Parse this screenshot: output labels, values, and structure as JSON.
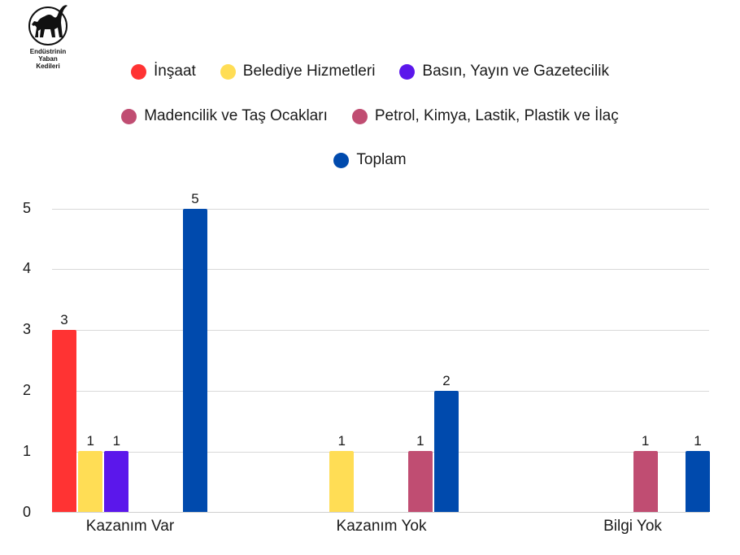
{
  "logo": {
    "icon": "black-cat-icon",
    "line1": "Endüstrinin",
    "line2": "Yaban",
    "line3": "Kedileri"
  },
  "legend": {
    "row1": [
      {
        "label": "İnşaat",
        "color": "#FF3333"
      },
      {
        "label": "Belediye Hizmetleri",
        "color": "#FFDD55"
      },
      {
        "label": "Basın, Yayın ve Gazetecilik",
        "color": "#5B17EB"
      }
    ],
    "row2": [
      {
        "label": "Madencilik ve Taş Ocakları",
        "color": "#C04D72"
      },
      {
        "label": "Petrol, Kimya, Lastik, Plastik ve İlaç",
        "color": "#C04D72"
      }
    ],
    "row3": [
      {
        "label": "Toplam",
        "color": "#004AAD"
      }
    ]
  },
  "axis": {
    "y_ticks": [
      "0",
      "1",
      "2",
      "3",
      "4",
      "5"
    ]
  },
  "chart_data": {
    "type": "bar",
    "title": "",
    "xlabel": "",
    "ylabel": "",
    "categories": [
      "Kazanım Var",
      "Kazanım Yok",
      "Bilgi Yok"
    ],
    "series": [
      {
        "name": "İnşaat",
        "color": "#FF3333",
        "values": [
          3,
          0,
          0
        ]
      },
      {
        "name": "Belediye Hizmetleri",
        "color": "#FFDD55",
        "values": [
          1,
          1,
          0
        ]
      },
      {
        "name": "Basın, Yayın ve Gazetecilik",
        "color": "#5B17EB",
        "values": [
          1,
          0,
          0
        ]
      },
      {
        "name": "Madencilik ve Taş Ocakları",
        "color": "#C04D72",
        "values": [
          0,
          0,
          1
        ]
      },
      {
        "name": "Petrol, Kimya, Lastik, Plastik ve İlaç",
        "color": "#C04D72",
        "values": [
          0,
          1,
          0
        ]
      },
      {
        "name": "Toplam",
        "color": "#004AAD",
        "values": [
          5,
          2,
          1
        ]
      }
    ],
    "ylim": [
      0,
      5
    ],
    "yticks": [
      0,
      1,
      2,
      3,
      4,
      5
    ],
    "grid": true,
    "legend_position": "top",
    "data_labels": true
  }
}
